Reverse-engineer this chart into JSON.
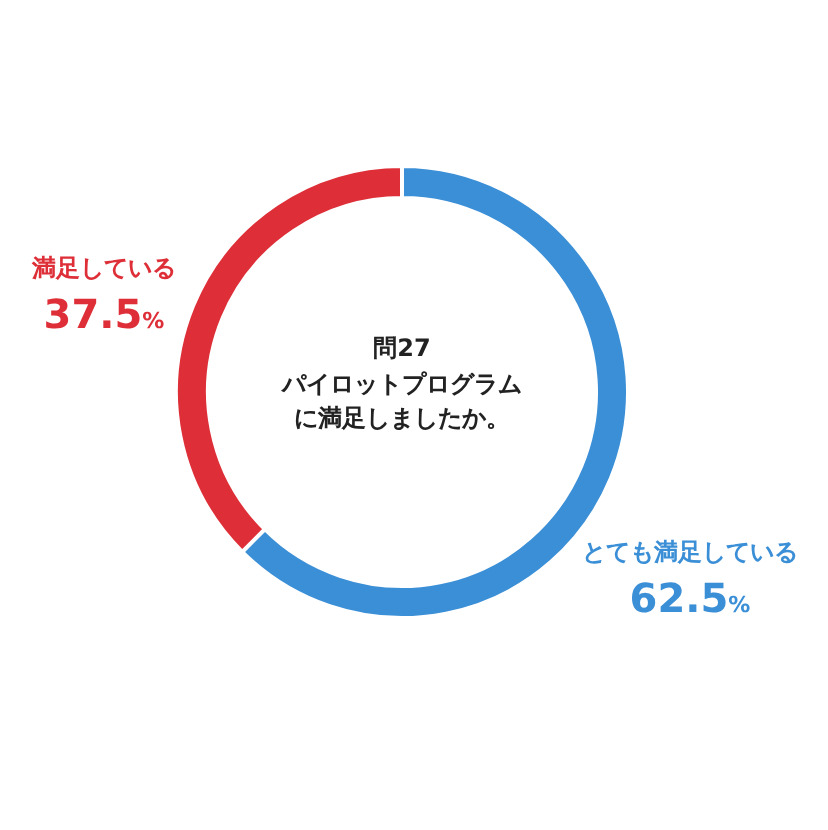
{
  "chart_data": {
    "type": "donut",
    "title": "問27",
    "subtitle": "パイロットプログラムに満足しましたか。",
    "categories": [
      "とても満足している",
      "満足している"
    ],
    "values": [
      62.5,
      37.5
    ],
    "value_labels": [
      "62.5%",
      "37.5%"
    ],
    "colors": [
      "#3b8fd6",
      "#de2f38"
    ]
  }
}
